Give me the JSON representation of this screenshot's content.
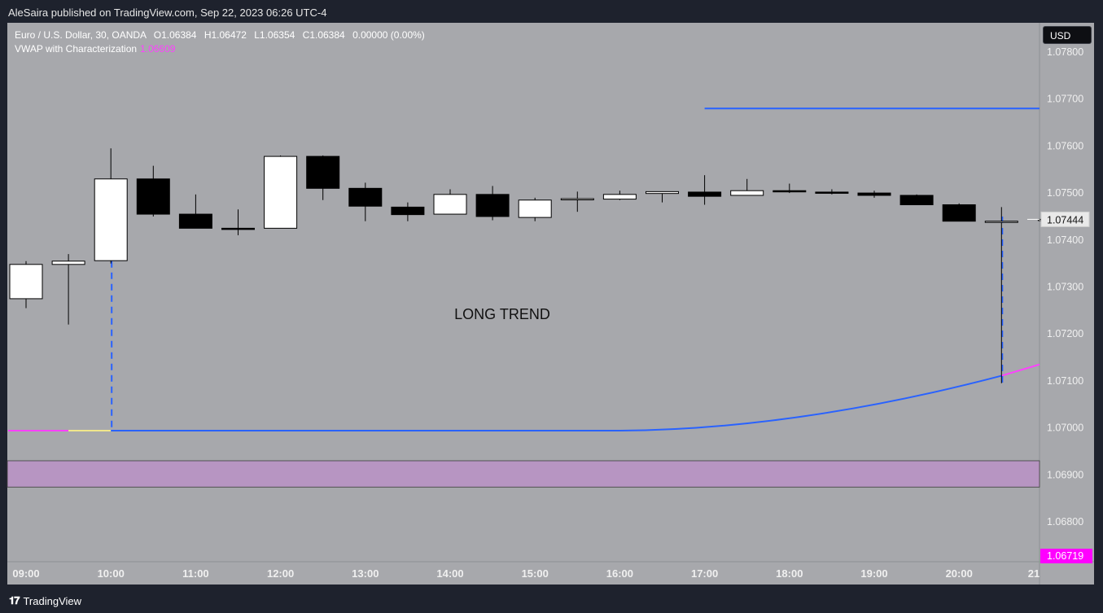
{
  "header": {
    "published": "AleSaira published on TradingView.com, Sep 22, 2023 06:26 UTC-4"
  },
  "legend": {
    "symbol": "Euro / U.S. Dollar, 30, OANDA",
    "o_label": "O",
    "o_value": "1.06384",
    "h_label": "H",
    "h_value": "1.06472",
    "l_label": "L",
    "l_value": "1.06354",
    "c_label": "C",
    "c_value": "1.06384",
    "change": "0.00000 (0.00%)",
    "indicator": "VWAP with Characterization",
    "indicator_value": "1.06609"
  },
  "currency_button": "USD",
  "annotation": "LONG TREND",
  "footer": {
    "logo_text": "TradingView"
  },
  "colors": {
    "bg": "#a7a8ac",
    "vwap_blue": "#2962ff",
    "vwap_magenta": "#ff40ff",
    "zone": "#b795c2",
    "last_price_tag": "#ff00ff"
  },
  "chart_data": {
    "type": "candlestick",
    "ylim": [
      1.0672,
      1.0785
    ],
    "y_ticks": [
      "1.07800",
      "1.07700",
      "1.07600",
      "1.07500",
      "1.07400",
      "1.07300",
      "1.07200",
      "1.07100",
      "1.07000",
      "1.06900",
      "1.06800"
    ],
    "x_ticks": [
      "09:00",
      "10:00",
      "11:00",
      "12:00",
      "13:00",
      "14:00",
      "15:00",
      "16:00",
      "17:00",
      "18:00",
      "19:00",
      "20:00",
      "21"
    ],
    "candles": [
      {
        "o": 1.07275,
        "h": 1.07355,
        "l": 1.07255,
        "c": 1.07348
      },
      {
        "o": 1.07348,
        "h": 1.0737,
        "l": 1.0722,
        "c": 1.07355
      },
      {
        "o": 1.07356,
        "h": 1.07595,
        "l": 1.0735,
        "c": 1.0753
      },
      {
        "o": 1.0753,
        "h": 1.07558,
        "l": 1.0745,
        "c": 1.07455
      },
      {
        "o": 1.07455,
        "h": 1.07497,
        "l": 1.07425,
        "c": 1.07425
      },
      {
        "o": 1.07425,
        "h": 1.07465,
        "l": 1.0741,
        "c": 1.07423
      },
      {
        "o": 1.07425,
        "h": 1.0758,
        "l": 1.07425,
        "c": 1.07578
      },
      {
        "o": 1.07578,
        "h": 1.0758,
        "l": 1.07485,
        "c": 1.0751
      },
      {
        "o": 1.0751,
        "h": 1.07522,
        "l": 1.0744,
        "c": 1.07472
      },
      {
        "o": 1.0747,
        "h": 1.0748,
        "l": 1.0744,
        "c": 1.07454
      },
      {
        "o": 1.07455,
        "h": 1.07508,
        "l": 1.07455,
        "c": 1.07497
      },
      {
        "o": 1.07497,
        "h": 1.07515,
        "l": 1.07442,
        "c": 1.0745
      },
      {
        "o": 1.07448,
        "h": 1.0749,
        "l": 1.0744,
        "c": 1.07485
      },
      {
        "o": 1.07488,
        "h": 1.07503,
        "l": 1.0746,
        "c": 1.07488
      },
      {
        "o": 1.07487,
        "h": 1.07505,
        "l": 1.07485,
        "c": 1.07497
      },
      {
        "o": 1.07499,
        "h": 1.075,
        "l": 1.0748,
        "c": 1.07503
      },
      {
        "o": 1.07502,
        "h": 1.07538,
        "l": 1.07475,
        "c": 1.07493
      },
      {
        "o": 1.07495,
        "h": 1.0753,
        "l": 1.07495,
        "c": 1.07505
      },
      {
        "o": 1.07505,
        "h": 1.0752,
        "l": 1.075,
        "c": 1.07503
      },
      {
        "o": 1.07502,
        "h": 1.07508,
        "l": 1.07497,
        "c": 1.075
      },
      {
        "o": 1.075,
        "h": 1.07505,
        "l": 1.0749,
        "c": 1.07495
      },
      {
        "o": 1.07495,
        "h": 1.07497,
        "l": 1.07475,
        "c": 1.07475
      },
      {
        "o": 1.07475,
        "h": 1.07478,
        "l": 1.0744,
        "c": 1.0744
      },
      {
        "o": 1.0744,
        "h": 1.0747,
        "l": 1.07095,
        "c": 1.0744
      },
      {
        "o": 1.07444,
        "h": 1.0745,
        "l": 1.0744,
        "c": 1.07444
      }
    ],
    "vwap_line": [
      {
        "i": -0.5,
        "y": 1.06994
      },
      {
        "i": 2.5,
        "y": 1.06994
      },
      {
        "i": 14,
        "y": 1.06995
      },
      {
        "i": 16,
        "y": 1.07005
      },
      {
        "i": 18,
        "y": 1.07025
      },
      {
        "i": 20,
        "y": 1.07053
      },
      {
        "i": 22,
        "y": 1.0709
      },
      {
        "i": 23,
        "y": 1.07111
      },
      {
        "i": 24.5,
        "y": 1.07132
      }
    ],
    "resistance_level": 1.0768,
    "resistance_start_index": 16,
    "zone": [
      1.06874,
      1.0693
    ],
    "markers": [
      2,
      23
    ],
    "current_price_label": "1.07444",
    "bottom_price_label": "1.06719"
  }
}
